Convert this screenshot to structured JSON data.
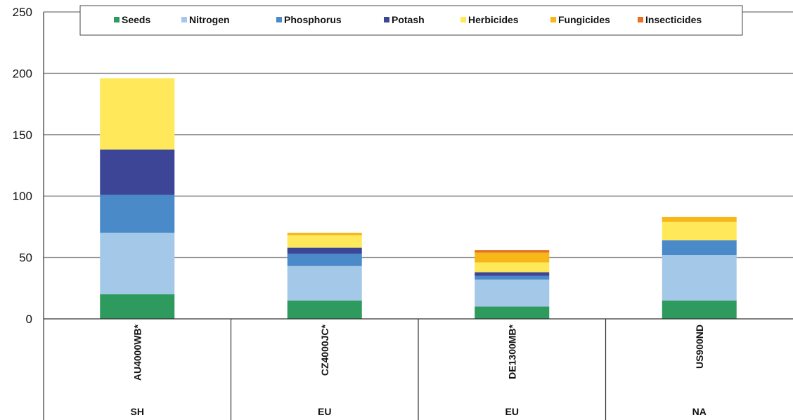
{
  "chart_data": {
    "type": "bar",
    "stacked": true,
    "categories": [
      "AU4000WB*",
      "CZ4000JC*",
      "DE1300MB*",
      "US900ND"
    ],
    "groups": [
      "SH",
      "EU",
      "EU",
      "NA"
    ],
    "ylim": [
      0,
      250
    ],
    "yticks": [
      0,
      50,
      100,
      150,
      200,
      250
    ],
    "grid": true,
    "legend_position": "top",
    "series": [
      {
        "name": "Seeds",
        "color": "#2e9a5e",
        "values": [
          20,
          15,
          10,
          15
        ]
      },
      {
        "name": "Nitrogen",
        "color": "#a4c8e8",
        "values": [
          50,
          28,
          22,
          37
        ]
      },
      {
        "name": "Phosphorus",
        "color": "#4a8ac9",
        "values": [
          31,
          10,
          3,
          12
        ]
      },
      {
        "name": "Potash",
        "color": "#3c4596",
        "values": [
          37,
          5,
          3,
          0
        ]
      },
      {
        "name": "Herbicides",
        "color": "#ffe85a",
        "values": [
          58,
          10,
          8,
          15
        ]
      },
      {
        "name": "Fungicides",
        "color": "#f7b718",
        "values": [
          0,
          2,
          8,
          4
        ]
      },
      {
        "name": "Insecticides",
        "color": "#e8701f",
        "values": [
          0,
          0,
          2,
          0
        ]
      }
    ]
  }
}
